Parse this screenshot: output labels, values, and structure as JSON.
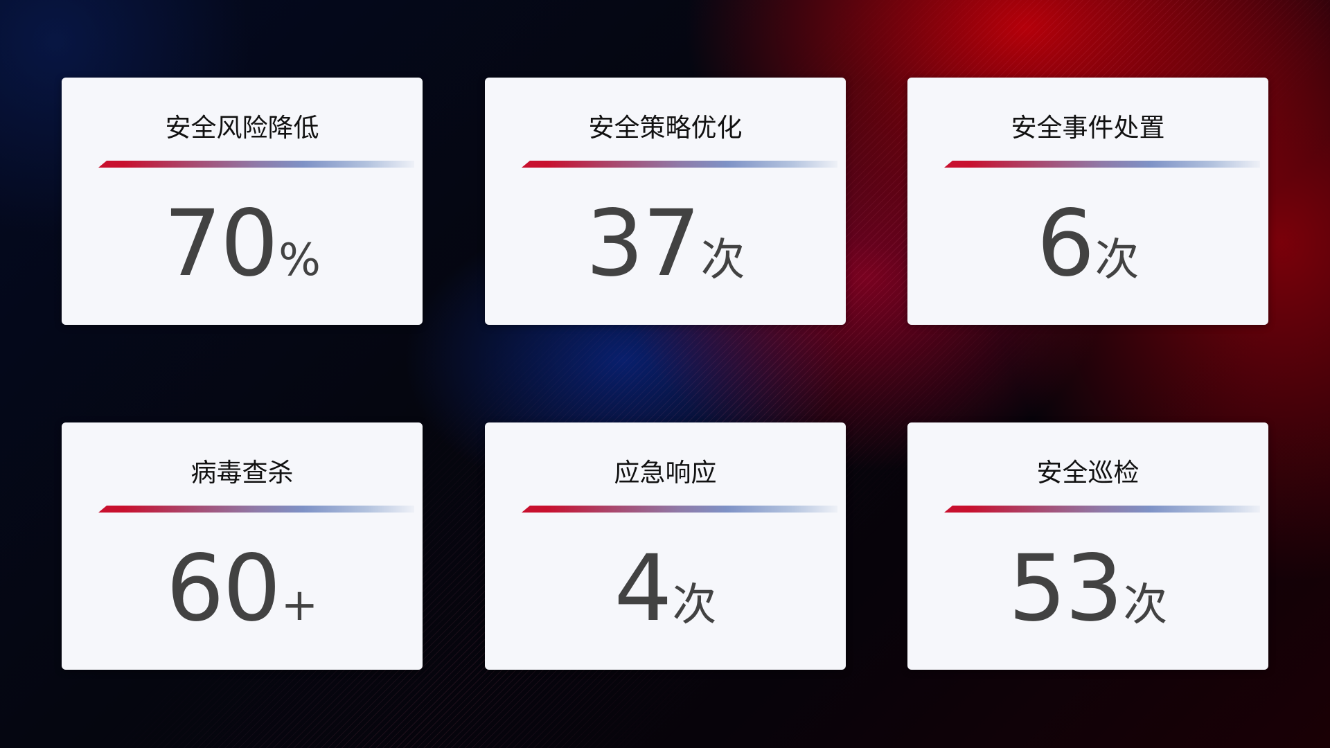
{
  "cards": [
    {
      "title": "安全风险降低",
      "value": "70",
      "unit": "%"
    },
    {
      "title": "安全策略优化",
      "value": "37",
      "unit": "次"
    },
    {
      "title": "安全事件处置",
      "value": "6",
      "unit": "次"
    },
    {
      "title": "病毒查杀",
      "value": "60",
      "unit": "+"
    },
    {
      "title": "应急响应",
      "value": "4",
      "unit": "次"
    },
    {
      "title": "安全巡检",
      "value": "53",
      "unit": "次"
    }
  ],
  "colors": {
    "accent_red": "#c8102e",
    "accent_blue": "#7e92c6",
    "card_bg": "#f6f7fb",
    "value_text": "#424242"
  }
}
